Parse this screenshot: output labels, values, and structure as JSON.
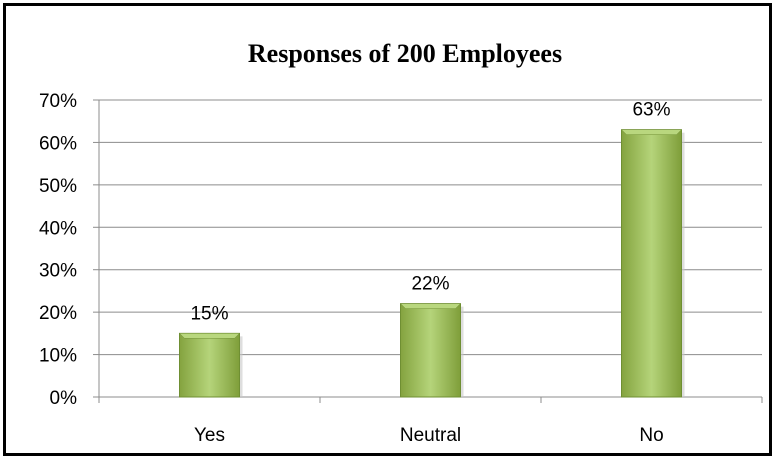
{
  "chart_data": {
    "type": "bar",
    "title": "Responses of 200 Employees",
    "categories": [
      "Yes",
      "Neutral",
      "No"
    ],
    "values": [
      15,
      22,
      63
    ],
    "data_labels": [
      "15%",
      "22%",
      "63%"
    ],
    "ylim": [
      0,
      70
    ],
    "yticks": [
      "0%",
      "10%",
      "20%",
      "30%",
      "40%",
      "50%",
      "60%",
      "70%"
    ],
    "xlabel": "",
    "ylabel": "",
    "grid": true,
    "legend": "none",
    "bar_color": "#9bbb59",
    "bar_light": "#b9d77e",
    "bar_dark": "#6f8f33",
    "border_color": "#000000"
  }
}
